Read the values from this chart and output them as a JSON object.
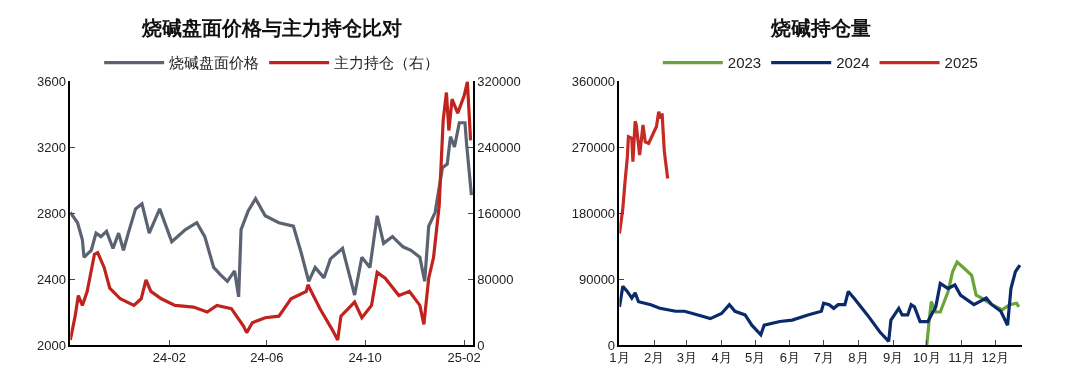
{
  "chart_data": [
    {
      "type": "line",
      "title": "烧碱盘面价格与主力持仓比对",
      "legend": "top",
      "xlim": [
        "2023-10-01",
        "2025-02-12"
      ],
      "xticks": [
        {
          "value": "2024-02-01",
          "label": "24-02"
        },
        {
          "value": "2024-06-01",
          "label": "24-06"
        },
        {
          "value": "2024-10-01",
          "label": "24-10"
        },
        {
          "value": "2025-02-01",
          "label": "25-02"
        }
      ],
      "ylim": [
        2000,
        3600
      ],
      "yticks": [
        2000,
        2400,
        2800,
        3200,
        3600
      ],
      "y2lim": [
        0,
        320000
      ],
      "y2ticks": [
        0,
        80000,
        160000,
        240000,
        320000
      ],
      "series": [
        {
          "name": "烧碱盘面价格",
          "color": "#5b6272",
          "x": [
            "2023-10-01",
            "2023-10-10",
            "2023-10-16",
            "2023-10-18",
            "2023-10-27",
            "2023-11-02",
            "2023-11-08",
            "2023-11-15",
            "2023-11-23",
            "2023-11-30",
            "2023-12-06",
            "2023-12-12",
            "2023-12-21",
            "2023-12-29",
            "2024-01-07",
            "2024-01-20",
            "2024-02-04",
            "2024-02-21",
            "2024-03-06",
            "2024-03-16",
            "2024-03-27",
            "2024-04-04",
            "2024-04-13",
            "2024-04-22",
            "2024-04-27",
            "2024-04-30",
            "2024-05-09",
            "2024-05-18",
            "2024-05-30",
            "2024-06-16",
            "2024-07-04",
            "2024-07-14",
            "2024-07-23",
            "2024-07-31",
            "2024-08-11",
            "2024-08-19",
            "2024-09-03",
            "2024-09-18",
            "2024-09-27",
            "2024-10-07",
            "2024-10-16",
            "2024-10-24",
            "2024-11-04",
            "2024-11-17",
            "2024-11-27",
            "2024-12-08",
            "2024-12-14",
            "2024-12-19",
            "2024-12-27",
            "2025-01-05",
            "2025-01-11",
            "2025-01-15",
            "2025-01-20",
            "2025-01-26",
            "2025-02-02",
            "2025-02-04",
            "2025-02-10"
          ],
          "values": [
            2804,
            2741,
            2637,
            2532,
            2574,
            2678,
            2657,
            2689,
            2585,
            2678,
            2574,
            2678,
            2825,
            2856,
            2678,
            2825,
            2626,
            2699,
            2741,
            2657,
            2470,
            2428,
            2386,
            2449,
            2292,
            2699,
            2814,
            2887,
            2783,
            2741,
            2720,
            2553,
            2386,
            2470,
            2407,
            2522,
            2585,
            2303,
            2532,
            2470,
            2783,
            2616,
            2657,
            2595,
            2574,
            2532,
            2386,
            2720,
            2804,
            3075,
            3096,
            3263,
            3200,
            3347,
            3347,
            3221,
            2908
          ]
        },
        {
          "name": "主力持仓（右）",
          "color": "#c0231e",
          "axis": "y2",
          "x": [
            "2023-10-01",
            "2023-10-07",
            "2023-10-11",
            "2023-10-16",
            "2023-10-22",
            "2023-10-31",
            "2023-11-04",
            "2023-11-12",
            "2023-11-19",
            "2023-12-02",
            "2023-12-19",
            "2023-12-28",
            "2024-01-03",
            "2024-01-09",
            "2024-01-22",
            "2024-02-08",
            "2024-03-02",
            "2024-03-19",
            "2024-03-31",
            "2024-04-18",
            "2024-05-03",
            "2024-05-07",
            "2024-05-14",
            "2024-05-30",
            "2024-06-16",
            "2024-07-01",
            "2024-07-20",
            "2024-07-22",
            "2024-08-06",
            "2024-08-21",
            "2024-08-28",
            "2024-09-01",
            "2024-09-18",
            "2024-09-27",
            "2024-10-09",
            "2024-10-16",
            "2024-10-26",
            "2024-11-12",
            "2024-11-25",
            "2024-12-08",
            "2024-12-13",
            "2024-12-19",
            "2024-12-25",
            "2025-01-01",
            "2025-01-06",
            "2025-01-10",
            "2025-01-13",
            "2025-01-17",
            "2025-01-24",
            "2025-02-01",
            "2025-02-05",
            "2025-02-09"
          ],
          "values": [
            6000,
            35000,
            60000,
            48000,
            65000,
            110000,
            112000,
            94000,
            69000,
            56000,
            48000,
            56000,
            79000,
            65000,
            56000,
            48000,
            46000,
            40000,
            48000,
            44000,
            23000,
            15000,
            27000,
            33000,
            35000,
            56000,
            65000,
            73000,
            44000,
            19000,
            6000,
            35000,
            52000,
            33000,
            48000,
            88000,
            81000,
            60000,
            65000,
            48000,
            25000,
            81000,
            106000,
            169000,
            273000,
            306000,
            260000,
            298000,
            281000,
            302000,
            319000,
            248000
          ]
        }
      ]
    },
    {
      "type": "line",
      "title": "烧碱持仓量",
      "legend": "top",
      "xlim": [
        "--01-01",
        "--12-25"
      ],
      "xticks": [
        {
          "value": "--01-01",
          "label": "1月"
        },
        {
          "value": "--02-01",
          "label": "2月"
        },
        {
          "value": "--03-01",
          "label": "3月"
        },
        {
          "value": "--04-01",
          "label": "4月"
        },
        {
          "value": "--05-01",
          "label": "5月"
        },
        {
          "value": "--06-01",
          "label": "6月"
        },
        {
          "value": "--07-01",
          "label": "7月"
        },
        {
          "value": "--08-01",
          "label": "8月"
        },
        {
          "value": "--09-01",
          "label": "9月"
        },
        {
          "value": "--10-01",
          "label": "10月"
        },
        {
          "value": "--11-01",
          "label": "11月"
        },
        {
          "value": "--12-01",
          "label": "12月"
        }
      ],
      "ylim": [
        0,
        360000
      ],
      "yticks": [
        0,
        90000,
        180000,
        270000,
        360000
      ],
      "series": [
        {
          "name": "2023",
          "color": "#6aa336",
          "x": [
            "--10-01",
            "--10-03",
            "--10-05",
            "--10-09",
            "--10-13",
            "--10-20",
            "--10-24",
            "--10-28",
            "--11-03",
            "--11-10",
            "--11-14",
            "--11-19",
            "--11-28",
            "--12-07",
            "--12-14",
            "--12-20",
            "--12-22"
          ],
          "values": [
            0,
            32000,
            59000,
            45000,
            45000,
            73000,
            100000,
            113000,
            105000,
            95000,
            68000,
            64000,
            55000,
            48000,
            55000,
            57000,
            52000
          ]
        },
        {
          "name": "2024",
          "color": "#0b2a6b",
          "x": [
            "--01-01",
            "--01-04",
            "--01-08",
            "--01-12",
            "--01-15",
            "--01-18",
            "--01-29",
            "--02-06",
            "--02-20",
            "--02-28",
            "--03-11",
            "--03-22",
            "--04-01",
            "--04-08",
            "--04-13",
            "--04-22",
            "--04-28",
            "--05-06",
            "--05-09",
            "--05-23",
            "--06-03",
            "--06-17",
            "--06-29",
            "--07-01",
            "--07-06",
            "--07-10",
            "--07-14",
            "--07-20",
            "--07-23",
            "--07-28",
            "--08-09",
            "--08-20",
            "--08-28",
            "--08-30",
            "--09-06",
            "--09-09",
            "--09-14",
            "--09-17",
            "--09-20",
            "--09-25",
            "--10-02",
            "--10-05",
            "--10-09",
            "--10-13",
            "--10-20",
            "--10-26",
            "--10-31",
            "--11-12",
            "--11-23",
            "--11-28",
            "--12-06",
            "--12-12",
            "--12-15",
            "--12-19",
            "--12-23"
          ],
          "values": [
            52000,
            80000,
            73000,
            64000,
            71000,
            59000,
            55000,
            50000,
            46000,
            46000,
            41000,
            36000,
            43000,
            55000,
            46000,
            41000,
            27000,
            14000,
            27000,
            32000,
            34000,
            41000,
            46000,
            57000,
            55000,
            50000,
            55000,
            55000,
            73000,
            64000,
            41000,
            18000,
            5000,
            34000,
            50000,
            41000,
            41000,
            55000,
            52000,
            32000,
            32000,
            41000,
            52000,
            84000,
            77000,
            82000,
            68000,
            55000,
            64000,
            55000,
            46000,
            27000,
            77000,
            100000,
            109000
          ]
        },
        {
          "name": "2025",
          "color": "#c62a24",
          "x": [
            "--01-01",
            "--01-04",
            "--01-06",
            "--01-08",
            "--01-09",
            "--01-12",
            "--01-13",
            "--01-15",
            "--01-16",
            "--01-19",
            "--01-22",
            "--01-24",
            "--01-27",
            "--02-03",
            "--02-05",
            "--02-07",
            "--02-08",
            "--02-10",
            "--02-13"
          ],
          "values": [
            152000,
            186000,
            223000,
            255000,
            284000,
            282000,
            250000,
            305000,
            300000,
            259000,
            300000,
            277000,
            275000,
            298000,
            318000,
            309000,
            316000,
            264000,
            227000
          ]
        }
      ]
    }
  ]
}
